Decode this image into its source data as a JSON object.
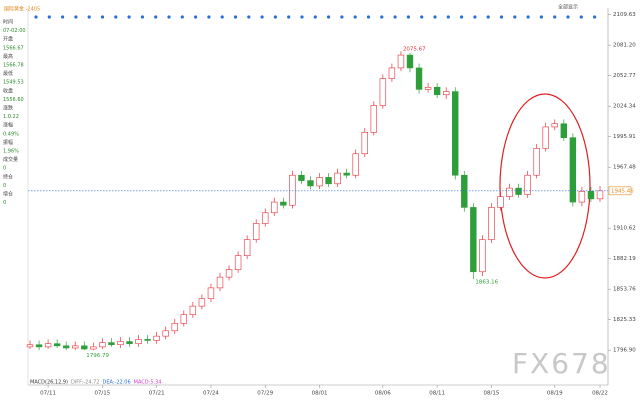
{
  "chart_data": {
    "type": "candlestick",
    "header": "国际黄金 -2405",
    "button": "全部显示",
    "categories": [
      null,
      null,
      "07/11",
      null,
      null,
      null,
      null,
      null,
      "07/15",
      null,
      null,
      null,
      null,
      null,
      "07/21",
      null,
      null,
      null,
      null,
      null,
      "07/24",
      null,
      null,
      null,
      null,
      null,
      "07/29",
      null,
      null,
      null,
      null,
      null,
      "08/01",
      null,
      null,
      null,
      null,
      null,
      null,
      "08/06",
      null,
      null,
      null,
      null,
      null,
      "08/11",
      null,
      null,
      null,
      null,
      null,
      "08/15",
      null,
      null,
      null,
      null,
      null,
      null,
      "08/19",
      null,
      null,
      null,
      null,
      "08/22"
    ],
    "open": [
      1800,
      1802,
      1800,
      1803,
      1801,
      1799,
      1801,
      1798,
      1800,
      1804,
      1802,
      1805,
      1803,
      1807,
      1806,
      1810,
      1815,
      1822,
      1830,
      1838,
      1845,
      1855,
      1865,
      1872,
      1885,
      1900,
      1915,
      1925,
      1935,
      1932,
      1960,
      1955,
      1950,
      1958,
      1952,
      1962,
      1960,
      1980,
      2000,
      2025,
      2050,
      2060,
      2072,
      2060,
      2040,
      2042,
      2035,
      2038,
      1960,
      1930,
      1870,
      1900,
      1930,
      1940,
      1948,
      1942,
      1960,
      1985,
      2005,
      2008,
      1995,
      1935,
      1945,
      1938
    ],
    "high": [
      1806,
      1806,
      1807,
      1807,
      1805,
      1805,
      1805,
      1804,
      1808,
      1808,
      1809,
      1809,
      1811,
      1811,
      1814,
      1819,
      1826,
      1834,
      1842,
      1849,
      1859,
      1869,
      1876,
      1889,
      1904,
      1919,
      1929,
      1939,
      1939,
      1964,
      1964,
      1959,
      1962,
      1962,
      1966,
      1966,
      1984,
      2004,
      2029,
      2054,
      2064,
      2075.67,
      2074,
      2064,
      2046,
      2046,
      2042,
      2042,
      1964,
      1934,
      1904,
      1934,
      1944,
      1952,
      1952,
      1964,
      1989,
      2009,
      2012,
      2012,
      1999,
      1949,
      1949,
      1950
    ],
    "low": [
      1798,
      1797,
      1798,
      1799,
      1797,
      1797,
      1796.79,
      1797,
      1798,
      1800,
      1799,
      1800,
      1800,
      1803,
      1803,
      1807,
      1812,
      1819,
      1827,
      1835,
      1842,
      1852,
      1862,
      1869,
      1882,
      1897,
      1912,
      1922,
      1929,
      1929,
      1952,
      1947,
      1947,
      1949,
      1949,
      1957,
      1957,
      1977,
      1997,
      2022,
      2047,
      2057,
      2056,
      2036,
      2037,
      2032,
      2031,
      1956,
      1926,
      1863.16,
      1866,
      1897,
      1927,
      1937,
      1939,
      1939,
      1957,
      1982,
      2002,
      1992,
      1931,
      1931,
      1935,
      1935
    ],
    "close": [
      1802,
      1800,
      1803,
      1801,
      1799,
      1801,
      1798,
      1800,
      1804,
      1802,
      1805,
      1803,
      1807,
      1806,
      1810,
      1815,
      1822,
      1830,
      1838,
      1845,
      1855,
      1865,
      1872,
      1885,
      1900,
      1915,
      1925,
      1935,
      1932,
      1960,
      1955,
      1950,
      1958,
      1952,
      1962,
      1960,
      1980,
      2000,
      2025,
      2050,
      2060,
      2072,
      2060,
      2040,
      2042,
      2035,
      2038,
      1960,
      1930,
      1870,
      1900,
      1930,
      1940,
      1948,
      1942,
      1960,
      1985,
      2005,
      2008,
      1995,
      1935,
      1945,
      1938,
      1945.46
    ],
    "up_color": "#e8303a",
    "down_color": "#2e9e3a",
    "ylim": [
      1771,
      2114
    ],
    "yticks": [
      {
        "value": 1796.9,
        "label": "1796.90"
      },
      1825.33,
      1853.76,
      1882.19,
      1910.62,
      1967.48,
      1995.91,
      2024.34,
      2052.77,
      {
        "value": 2081.2,
        "label": "2081.20"
      },
      2109.63
    ],
    "macd": [
      "MACD(26,12,9)",
      "DIFF:-24.72",
      "DEA:-22.06",
      "MACD:5.34"
    ],
    "watermark": "FX678",
    "info_panel": [
      "时间",
      "07-02:00",
      "开盘",
      "1566.67",
      "最高",
      "1566.78",
      "最低",
      "1549.53",
      "收盘",
      "1556.60",
      "涨跌",
      "1.0.22",
      "涨幅",
      "0.49%",
      "振幅",
      "1.96%",
      "成交量",
      "0",
      "持仓",
      "0",
      "增仓",
      "0"
    ]
  }
}
